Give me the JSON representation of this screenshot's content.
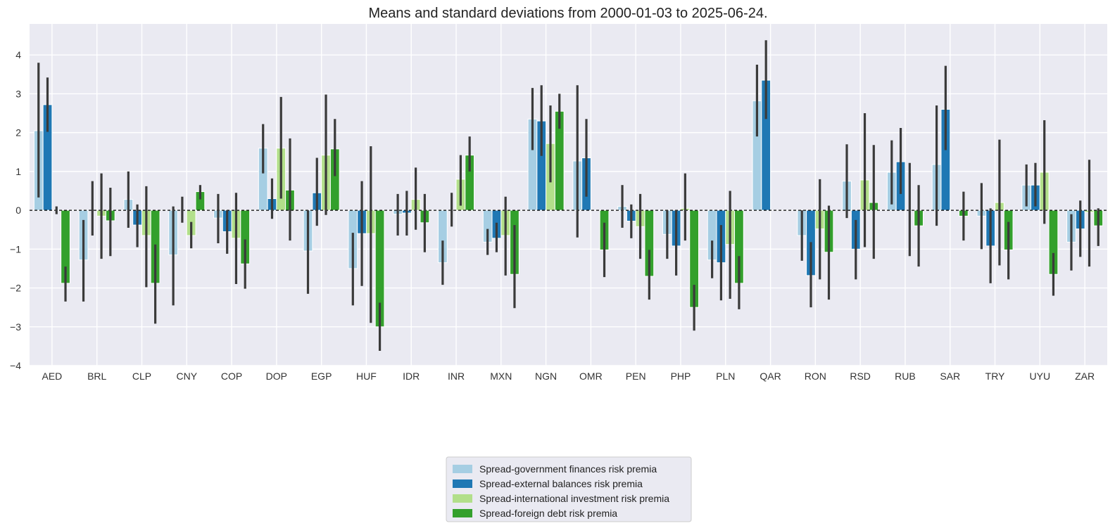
{
  "chart_data": {
    "type": "bar",
    "title": "Means and standard deviations from 2000-01-03 to 2025-06-24.",
    "xlabel": "",
    "ylabel": "",
    "ylim": [
      -4,
      4.8
    ],
    "yticks": [
      -4,
      -3,
      -2,
      -1,
      0,
      1,
      2,
      3,
      4
    ],
    "grid": true,
    "legend_position": "bottom-center",
    "reference_line": 0,
    "colors": {
      "background": "#eaeaf2",
      "grid": "#ffffff",
      "errorbar": "#3a3a3a",
      "zero_line": "#000000"
    },
    "categories": [
      "AED",
      "BRL",
      "CLP",
      "CNY",
      "COP",
      "DOP",
      "EGP",
      "HUF",
      "IDR",
      "INR",
      "MXN",
      "NGN",
      "OMR",
      "PEN",
      "PHP",
      "PLN",
      "QAR",
      "RON",
      "RSD",
      "RUB",
      "SAR",
      "TRY",
      "UYU",
      "ZAR"
    ],
    "series": [
      {
        "name": "Spread-government finances risk premia",
        "color": "#a6cee3",
        "values": [
          2.05,
          -1.28,
          0.28,
          -1.15,
          -0.2,
          1.6,
          -1.05,
          -1.5,
          -0.1,
          -1.35,
          -0.82,
          2.35,
          1.27,
          0.1,
          -0.62,
          -1.28,
          2.82,
          -0.65,
          0.75,
          0.98,
          1.18,
          -0.15,
          0.65,
          -0.82
        ],
        "err_low": [
          0.33,
          -2.35,
          -0.45,
          -2.45,
          -0.85,
          0.95,
          -2.15,
          -2.45,
          -0.65,
          -1.92,
          -1.15,
          1.55,
          -0.7,
          -0.45,
          -1.25,
          -1.75,
          1.9,
          -1.3,
          -0.2,
          0.15,
          -0.4,
          -1.0,
          0.1,
          -1.55
        ],
        "err_high": [
          3.8,
          -0.25,
          1.0,
          0.1,
          0.42,
          2.22,
          0.0,
          -0.58,
          0.42,
          -0.78,
          -0.48,
          3.15,
          3.22,
          0.65,
          0.0,
          -0.78,
          3.75,
          0.0,
          1.7,
          1.8,
          2.7,
          0.7,
          1.18,
          -0.1
        ]
      },
      {
        "name": "Spread-external balances risk premia",
        "color": "#1f78b4",
        "values": [
          2.72,
          0.0,
          -0.38,
          0.0,
          -0.55,
          0.3,
          0.45,
          -0.6,
          -0.07,
          0.0,
          -0.72,
          2.3,
          1.35,
          -0.28,
          -0.92,
          -1.35,
          3.35,
          -1.68,
          -1.0,
          1.25,
          2.6,
          -0.92,
          0.65,
          -0.48
        ],
        "err_low": [
          2.02,
          -0.65,
          -0.95,
          -0.32,
          -1.12,
          -0.22,
          -0.4,
          -1.95,
          -0.65,
          -0.42,
          -1.08,
          1.4,
          0.35,
          -0.72,
          -1.68,
          -2.32,
          2.35,
          -2.5,
          -1.78,
          0.42,
          1.55,
          -1.88,
          0.1,
          -1.2
        ],
        "err_high": [
          3.42,
          0.75,
          0.15,
          0.35,
          0.0,
          0.82,
          1.35,
          0.75,
          0.5,
          0.45,
          -0.32,
          3.22,
          2.35,
          0.15,
          0.0,
          -0.38,
          4.38,
          -0.82,
          -0.25,
          2.12,
          3.72,
          0.05,
          1.22,
          0.25
        ]
      },
      {
        "name": "Spread-international investment risk premia",
        "color": "#b2df8a",
        "values": [
          0.0,
          -0.15,
          -0.65,
          -0.65,
          -0.72,
          1.6,
          1.42,
          -0.6,
          0.28,
          0.8,
          -0.65,
          1.72,
          0.0,
          -0.42,
          0.05,
          -0.88,
          0.0,
          -0.48,
          0.78,
          0.0,
          0.0,
          0.2,
          0.98,
          -0.05
        ],
        "err_low": [
          -0.1,
          -1.25,
          -1.98,
          -0.98,
          -1.9,
          0.3,
          -0.12,
          -2.9,
          -0.5,
          0.12,
          -1.68,
          0.72,
          0.0,
          -1.25,
          -0.78,
          -2.28,
          0.0,
          -1.78,
          -0.95,
          -1.18,
          0.0,
          -1.42,
          -0.35,
          -1.45
        ],
        "err_high": [
          0.1,
          0.95,
          0.62,
          -0.3,
          0.45,
          2.92,
          2.98,
          1.65,
          1.1,
          1.42,
          0.35,
          2.7,
          0.0,
          0.42,
          0.95,
          0.5,
          0.0,
          0.8,
          2.5,
          1.22,
          0.0,
          1.82,
          2.32,
          1.3
        ]
      },
      {
        "name": "Spread-foreign debt risk premia",
        "color": "#33a02c",
        "values": [
          -1.88,
          -0.27,
          -1.88,
          0.48,
          -1.38,
          0.52,
          1.58,
          -3.0,
          -0.32,
          1.42,
          -1.65,
          2.55,
          -1.02,
          -1.7,
          -2.5,
          -1.88,
          0.0,
          -1.08,
          0.2,
          -0.4,
          -0.15,
          -1.02,
          -1.65,
          -0.4
        ],
        "err_low": [
          -2.35,
          -1.18,
          -2.92,
          0.28,
          -2.02,
          -0.78,
          0.88,
          -3.62,
          -1.08,
          1.0,
          -2.52,
          2.1,
          -1.72,
          -2.3,
          -3.1,
          -2.55,
          0.0,
          -2.3,
          -1.25,
          -1.45,
          -0.78,
          -1.78,
          -2.2,
          -0.92
        ],
        "err_high": [
          -1.45,
          0.58,
          -0.88,
          0.65,
          -0.75,
          1.85,
          2.35,
          -2.38,
          0.42,
          1.9,
          -0.38,
          3.0,
          -0.32,
          -1.02,
          -1.92,
          -1.18,
          0.0,
          0.12,
          1.68,
          0.65,
          0.48,
          -0.3,
          -1.1,
          0.05
        ]
      }
    ]
  }
}
